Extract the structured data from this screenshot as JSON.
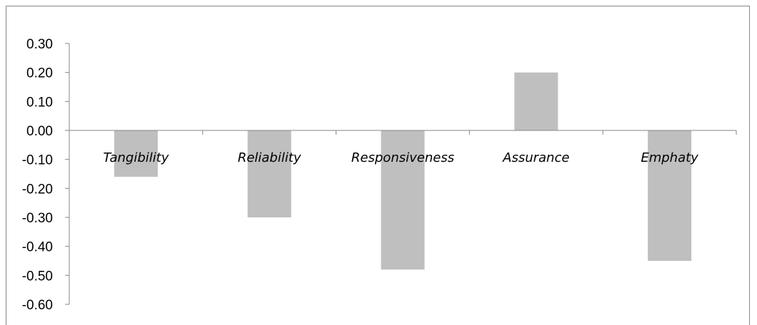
{
  "chart_data": {
    "type": "bar",
    "title": "",
    "xlabel": "",
    "ylabel": "",
    "categories": [
      "Tangibility",
      "Reliability",
      "Responsiveness",
      "Assurance",
      "Emphaty"
    ],
    "values": [
      -0.16,
      -0.3,
      -0.48,
      0.2,
      -0.45
    ],
    "ylim": [
      -0.6,
      0.3
    ],
    "yticks": [
      "0.30",
      "0.20",
      "0.10",
      "0.00",
      "-0.10",
      "-0.20",
      "-0.30",
      "-0.40",
      "-0.50",
      "-0.60"
    ],
    "ytick_values": [
      0.3,
      0.2,
      0.1,
      0.0,
      -0.1,
      -0.2,
      -0.3,
      -0.4,
      -0.5,
      -0.6
    ],
    "grid": false,
    "legend": "none",
    "bar_color": "#bfbfbf",
    "axis_color": "#868686"
  }
}
